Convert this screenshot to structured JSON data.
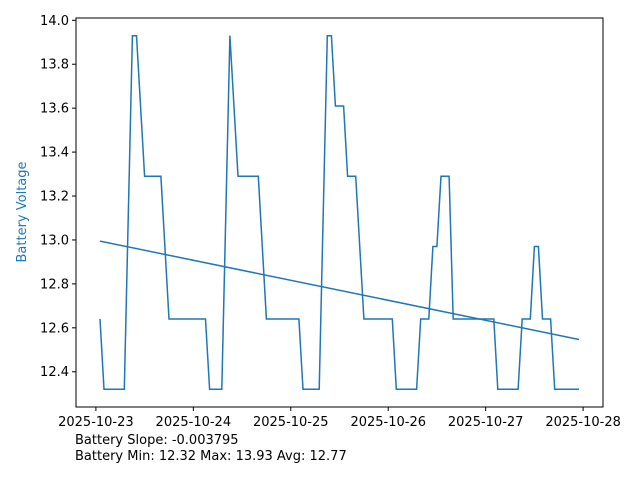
{
  "chart_data": {
    "type": "line",
    "title": "",
    "xlabel": "",
    "ylabel": "Battery Voltage",
    "ylabel_color": "#1f77b4",
    "line_color": "#1f77b4",
    "grid": false,
    "ylim": [
      12.2395,
      14.0105
    ],
    "xlim": [
      "2025-10-22T19:06",
      "2025-10-28T04:54"
    ],
    "x_ticks": [
      "2025-10-23",
      "2025-10-24",
      "2025-10-25",
      "2025-10-26",
      "2025-10-27",
      "2025-10-28"
    ],
    "y_ticks": [
      "12.4",
      "12.6",
      "12.8",
      "13.0",
      "13.2",
      "13.4",
      "13.6",
      "13.8",
      "14.0"
    ],
    "series": [
      {
        "x": [
          "2025-10-23T01:00",
          "2025-10-23T02:00",
          "2025-10-23T07:00",
          "2025-10-23T09:00",
          "2025-10-23T10:00",
          "2025-10-23T12:00",
          "2025-10-23T16:00",
          "2025-10-23T18:00",
          "2025-10-24T03:00",
          "2025-10-24T04:00",
          "2025-10-24T07:00",
          "2025-10-24T09:00",
          "2025-10-24T11:00",
          "2025-10-24T16:00",
          "2025-10-24T18:00",
          "2025-10-25T02:00",
          "2025-10-25T03:00",
          "2025-10-25T07:00",
          "2025-10-25T09:00",
          "2025-10-25T10:00",
          "2025-10-25T11:00",
          "2025-10-25T13:00",
          "2025-10-25T14:00",
          "2025-10-25T16:00",
          "2025-10-25T18:00",
          "2025-10-26T01:00",
          "2025-10-26T02:00",
          "2025-10-26T07:00",
          "2025-10-26T08:00",
          "2025-10-26T10:00",
          "2025-10-26T11:00",
          "2025-10-26T12:00",
          "2025-10-26T13:00",
          "2025-10-26T15:00",
          "2025-10-26T16:00",
          "2025-10-27T02:00",
          "2025-10-27T03:00",
          "2025-10-27T08:00",
          "2025-10-27T09:00",
          "2025-10-27T11:00",
          "2025-10-27T12:00",
          "2025-10-27T13:00",
          "2025-10-27T14:00",
          "2025-10-27T16:00",
          "2025-10-27T17:00",
          "2025-10-27T23:00"
        ],
        "y": [
          12.64,
          12.32,
          12.32,
          13.93,
          13.93,
          13.29,
          13.29,
          12.64,
          12.64,
          12.32,
          12.32,
          13.93,
          13.29,
          13.29,
          12.64,
          12.64,
          12.32,
          12.32,
          13.93,
          13.93,
          13.61,
          13.61,
          13.29,
          13.29,
          12.64,
          12.64,
          12.32,
          12.32,
          12.64,
          12.64,
          12.97,
          12.97,
          13.29,
          13.29,
          12.64,
          12.64,
          12.32,
          12.32,
          12.64,
          12.64,
          12.97,
          12.97,
          12.64,
          12.64,
          12.32,
          12.32
        ]
      },
      {
        "x": [
          "2025-10-23T01:00",
          "2025-10-27T23:00"
        ],
        "y": [
          12.995,
          12.547
        ]
      }
    ]
  },
  "footer": {
    "slope_text": "Battery Slope: -0.003795",
    "stats_text": "Battery Min: 12.32 Max: 13.93 Avg: 12.77"
  }
}
